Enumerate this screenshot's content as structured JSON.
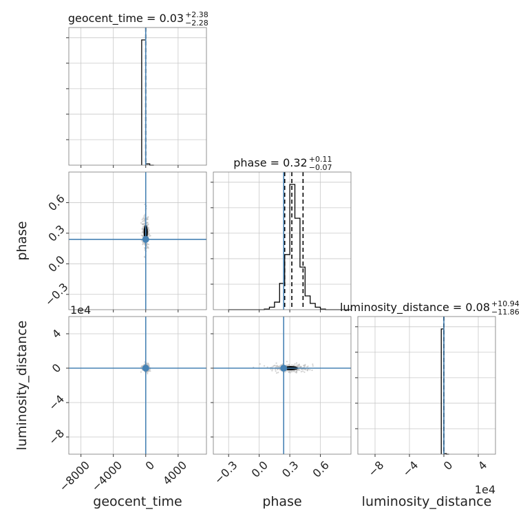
{
  "chart_data": {
    "type": "corner",
    "parameters": [
      "geocent_time",
      "phase",
      "luminosity_distance"
    ],
    "titles": [
      {
        "param": "geocent_time",
        "median": "0.03",
        "plus": "+2.38",
        "minus": "−2.28"
      },
      {
        "param": "phase",
        "median": "0.32",
        "plus": "+0.11",
        "minus": "−0.07"
      },
      {
        "param": "luminosity_distance",
        "median": "0.08",
        "plus": "+10.94",
        "minus": "−11.86"
      }
    ],
    "ranges": {
      "geocent_time": [
        -9500,
        7500
      ],
      "phase": [
        -0.45,
        0.9
      ],
      "luminosity_distance": [
        -100000,
        60000
      ]
    },
    "ticks": {
      "geocent_time": {
        "values": [
          -8000,
          -4000,
          0,
          4000
        ],
        "labels": [
          "−8000",
          "−4000",
          "0",
          "4000"
        ]
      },
      "phase": {
        "values": [
          -0.3,
          0.0,
          0.3,
          0.6
        ],
        "labels": [
          "−0.3",
          "0.0",
          "0.3",
          "0.6"
        ]
      },
      "luminosity_distance": {
        "values": [
          -80000,
          -40000,
          0,
          40000
        ],
        "labels": [
          "−8",
          "−4",
          "0",
          "4"
        ],
        "offset": "1e4"
      }
    },
    "truths": {
      "geocent_time": 0,
      "phase": 0.24,
      "luminosity_distance": 0
    },
    "quantiles": {
      "geocent_time": [
        -2.25,
        0.03,
        2.41
      ],
      "phase": [
        0.25,
        0.32,
        0.43
      ],
      "luminosity_distance": [
        -11.78,
        0.08,
        11.02
      ]
    },
    "histograms": {
      "geocent_time": {
        "bins": [
          -500,
          0,
          500,
          1000
        ],
        "counts": [
          1.0,
          0.01,
          0.0
        ]
      },
      "phase": {
        "bins": [
          -0.3,
          -0.25,
          -0.2,
          -0.15,
          -0.1,
          -0.05,
          0.0,
          0.05,
          0.1,
          0.15,
          0.2,
          0.25,
          0.3,
          0.35,
          0.4,
          0.45,
          0.5,
          0.55,
          0.6,
          0.65,
          0.7,
          0.75,
          0.8,
          0.85,
          0.9
        ],
        "counts": [
          0,
          0,
          0,
          0,
          0,
          0,
          0,
          0.005,
          0.02,
          0.06,
          0.21,
          0.44,
          1.0,
          0.73,
          0.34,
          0.11,
          0.05,
          0.02,
          0.005,
          0,
          0,
          0,
          0,
          0
        ]
      },
      "luminosity_distance": {
        "bins": [
          -3000,
          0,
          3000,
          6000
        ],
        "counts": [
          1.0,
          0.005,
          0.0
        ]
      }
    },
    "grid": true
  }
}
